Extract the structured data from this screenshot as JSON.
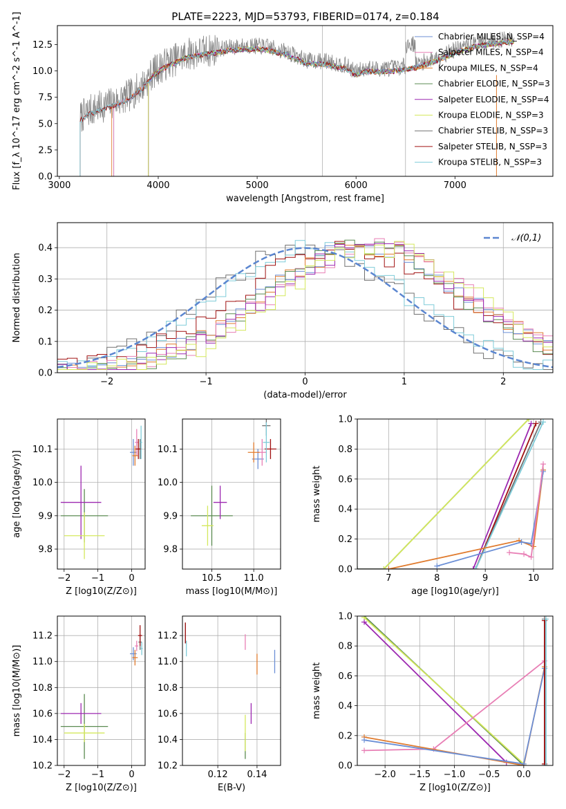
{
  "figure_title": "PLATE=2223, MJD=53793, FIBERID=0174, z=0.184",
  "colors": {
    "Chabrier MILES": "#6b8fd6",
    "Salpeter MILES": "#e87fb5",
    "Kroupa MILES": "#e07b2e",
    "Chabrier ELODIE": "#5a8a50",
    "Salpeter ELODIE": "#9c27b0",
    "Kroupa ELODIE": "#d4e85c",
    "Chabrier STELIB": "#707070",
    "Salpeter STELIB": "#a01010",
    "Kroupa STELIB": "#7ecbd8",
    "gaussian": "#5b86d0"
  },
  "chart_data": [
    {
      "id": "spectrum",
      "type": "line",
      "title": "PLATE=2223, MJD=53793, FIBERID=0174, z=0.184",
      "xlabel": "wavelength [Angstrom, rest frame]",
      "ylabel": "Flux [f_λ 10^-17 erg cm^-2 s^-1 A^-1]",
      "xlim": [
        2980,
        7990
      ],
      "ylim": [
        0,
        14.3
      ],
      "xticks": [
        3000,
        4000,
        5000,
        6000,
        7000
      ],
      "yticks": [
        0.0,
        2.5,
        5.0,
        7.5,
        10.0,
        12.5
      ],
      "vlines": [
        5660,
        6500
      ],
      "grid": false,
      "legend_position": "top-right",
      "spectrum_shape": {
        "x": [
          3200,
          3300,
          3450,
          3550,
          3700,
          3850,
          3950,
          4100,
          4300,
          4500,
          4700,
          4900,
          5100,
          5300,
          5500,
          5700,
          5900,
          6000,
          6100,
          6200,
          6400,
          6600,
          6800,
          7000,
          7200,
          7400,
          7600
        ],
        "y": [
          5.5,
          6.2,
          6.7,
          7.0,
          7.6,
          8.7,
          9.9,
          10.8,
          11.6,
          11.9,
          12.2,
          12.4,
          12.3,
          11.8,
          11.0,
          10.9,
          10.5,
          9.9,
          10.3,
          10.2,
          10.3,
          10.6,
          11.2,
          12.0,
          12.6,
          12.9,
          13.1
        ]
      },
      "series": [
        {
          "name": "Chabrier MILES, N_SSP=4",
          "key": "Chabrier MILES",
          "start": 3550
        },
        {
          "name": "Salpeter MILES, N_SSP=4",
          "key": "Salpeter MILES",
          "start": 3550
        },
        {
          "name": "Kroupa MILES, N_SSP=4",
          "key": "Kroupa MILES",
          "start": 3530
        },
        {
          "name": "Chabrier ELODIE, N_SSP=3",
          "key": "Chabrier ELODIE",
          "start": 3900
        },
        {
          "name": "Salpeter ELODIE, N_SSP=4",
          "key": "Salpeter ELODIE",
          "start": 3900
        },
        {
          "name": "Kroupa ELODIE, N_SSP=3",
          "key": "Kroupa ELODIE",
          "start": 3900
        },
        {
          "name": "Chabrier STELIB, N_SSP=3",
          "key": "Chabrier STELIB",
          "start": 3210
        },
        {
          "name": "Salpeter STELIB, N_SSP=3",
          "key": "Salpeter STELIB",
          "start": 3210
        },
        {
          "name": "Kroupa STELIB, N_SSP=3",
          "key": "Kroupa STELIB",
          "start": 3210
        }
      ]
    },
    {
      "id": "residuals",
      "type": "line",
      "xlabel": "(data-model)/error",
      "ylabel": "Normed distribution",
      "xlim": [
        -2.5,
        2.5
      ],
      "ylim": [
        0,
        0.48
      ],
      "xticks": [
        -2,
        -1,
        0,
        1,
        2
      ],
      "yticks": [
        0.0,
        0.1,
        0.2,
        0.3,
        0.4
      ],
      "grid": true,
      "legend_position": "top-right",
      "gaussian": {
        "name": "𝒩(0,1)",
        "mean": 0,
        "sigma": 1
      },
      "hist_shapes": [
        {
          "key": "Chabrier STELIB",
          "peak": 0.0,
          "width": 1.0
        },
        {
          "key": "Kroupa STELIB",
          "peak": 0.05,
          "width": 1.0
        },
        {
          "key": "Salpeter STELIB",
          "peak": 0.4,
          "width": 1.1
        },
        {
          "key": "Chabrier MILES",
          "peak": 0.6,
          "width": 1.05
        },
        {
          "key": "Kroupa MILES",
          "peak": 0.6,
          "width": 1.05
        },
        {
          "key": "Salpeter MILES",
          "peak": 0.7,
          "width": 1.05
        },
        {
          "key": "Chabrier ELODIE",
          "peak": 0.6,
          "width": 1.0
        },
        {
          "key": "Salpeter ELODIE",
          "peak": 0.65,
          "width": 1.0
        },
        {
          "key": "Kroupa ELODIE",
          "peak": 0.75,
          "width": 1.0
        }
      ]
    },
    {
      "id": "age_vs_Z",
      "type": "scatter",
      "xlabel": "Z [log10(Z/Z⊙)]",
      "ylabel": "age [log10(age/yr)]",
      "xlim": [
        -2.2,
        0.4
      ],
      "ylim": [
        9.74,
        10.19
      ],
      "xticks": [
        -2,
        -1,
        0
      ],
      "yticks": [
        9.8,
        9.9,
        10.0,
        10.1
      ],
      "grid": true,
      "points": [
        {
          "key": "Chabrier MILES",
          "x": 0.05,
          "y": 10.09,
          "xerr": 0.1,
          "yerr": 0.04
        },
        {
          "key": "Salpeter MILES",
          "x": 0.15,
          "y": 10.12,
          "xerr": 0.05,
          "yerr": 0.04
        },
        {
          "key": "Kroupa MILES",
          "x": 0.1,
          "y": 10.08,
          "xerr": 0.08,
          "yerr": 0.03
        },
        {
          "key": "Chabrier ELODIE",
          "x": -1.4,
          "y": 9.9,
          "xerr": 0.7,
          "yerr": 0.08
        },
        {
          "key": "Salpeter ELODIE",
          "x": -1.5,
          "y": 9.94,
          "xerr": 0.6,
          "yerr": 0.11
        },
        {
          "key": "Kroupa ELODIE",
          "x": -1.4,
          "y": 9.84,
          "xerr": 0.6,
          "yerr": 0.07
        },
        {
          "key": "Chabrier STELIB",
          "x": 0.25,
          "y": 10.1,
          "xerr": 0.05,
          "yerr": 0.03
        },
        {
          "key": "Salpeter STELIB",
          "x": 0.2,
          "y": 10.1,
          "xerr": 0.08,
          "yerr": 0.03
        },
        {
          "key": "Kroupa STELIB",
          "x": 0.28,
          "y": 10.12,
          "xerr": 0.03,
          "yerr": 0.05
        }
      ]
    },
    {
      "id": "age_vs_mass",
      "type": "scatter",
      "xlabel": "mass [log10(M/M⊙)]",
      "ylabel": "",
      "xlim": [
        10.15,
        11.32
      ],
      "ylim": [
        9.74,
        10.19
      ],
      "xticks": [
        10.5,
        11.0
      ],
      "yticks": [
        9.8,
        9.9,
        10.0,
        10.1
      ],
      "grid": true,
      "points": [
        {
          "key": "Chabrier MILES",
          "x": 11.05,
          "y": 10.07,
          "xerr": 0.07,
          "yerr": 0.03
        },
        {
          "key": "Salpeter MILES",
          "x": 11.1,
          "y": 10.09,
          "xerr": 0.05,
          "yerr": 0.04
        },
        {
          "key": "Kroupa MILES",
          "x": 11.0,
          "y": 10.09,
          "xerr": 0.07,
          "yerr": 0.03
        },
        {
          "key": "Chabrier ELODIE",
          "x": 10.5,
          "y": 9.9,
          "xerr": 0.25,
          "yerr": 0.09
        },
        {
          "key": "Salpeter ELODIE",
          "x": 10.6,
          "y": 9.94,
          "xerr": 0.08,
          "yerr": 0.05
        },
        {
          "key": "Kroupa ELODIE",
          "x": 10.45,
          "y": 9.87,
          "xerr": 0.07,
          "yerr": 0.06
        },
        {
          "key": "Chabrier STELIB",
          "x": 11.15,
          "y": 10.17,
          "xerr": 0.05,
          "yerr": 0.03
        },
        {
          "key": "Salpeter STELIB",
          "x": 11.2,
          "y": 10.1,
          "xerr": 0.07,
          "yerr": 0.03
        },
        {
          "key": "Kroupa STELIB",
          "x": 11.15,
          "y": 10.12,
          "xerr": 0.04,
          "yerr": 0.06
        }
      ]
    },
    {
      "id": "weight_vs_age",
      "type": "line",
      "xlabel": "age [log10(age/yr)]",
      "ylabel": "mass weight",
      "xlim": [
        6.35,
        10.4
      ],
      "ylim": [
        0,
        1.0
      ],
      "xticks": [
        7,
        8,
        9,
        10
      ],
      "yticks": [
        0.0,
        0.2,
        0.4,
        0.6,
        0.8,
        1.0
      ],
      "grid": true,
      "series": [
        {
          "key": "Chabrier ELODIE",
          "points": [
            [
              6.35,
              0.0
            ],
            [
              6.9,
              0.0
            ],
            [
              9.9,
              1.0
            ]
          ]
        },
        {
          "key": "Kroupa ELODIE",
          "points": [
            [
              6.9,
              0.0
            ],
            [
              9.9,
              1.0
            ]
          ]
        },
        {
          "key": "Salpeter ELODIE",
          "points": [
            [
              8.75,
              0.0
            ],
            [
              9.95,
              0.97
            ]
          ]
        },
        {
          "key": "Salpeter STELIB",
          "points": [
            [
              8.8,
              0.0
            ],
            [
              10.05,
              0.97
            ]
          ]
        },
        {
          "key": "Chabrier STELIB",
          "points": [
            [
              6.35,
              0.0
            ],
            [
              8.8,
              0.0
            ],
            [
              10.15,
              0.98
            ]
          ]
        },
        {
          "key": "Kroupa STELIB",
          "points": [
            [
              8.8,
              0.0
            ],
            [
              10.2,
              0.98
            ]
          ]
        },
        {
          "key": "Kroupa MILES",
          "points": [
            [
              7.0,
              0.0
            ],
            [
              9.7,
              0.19
            ],
            [
              10.0,
              0.15
            ],
            [
              10.2,
              0.66
            ]
          ]
        },
        {
          "key": "Chabrier MILES",
          "points": [
            [
              8.0,
              0.02
            ],
            [
              9.75,
              0.18
            ],
            [
              9.95,
              0.17
            ],
            [
              10.2,
              0.65
            ]
          ]
        },
        {
          "key": "Salpeter MILES",
          "points": [
            [
              9.5,
              0.11
            ],
            [
              9.8,
              0.1
            ],
            [
              9.95,
              0.08
            ],
            [
              10.2,
              0.7
            ]
          ]
        }
      ]
    },
    {
      "id": "mass_vs_Z",
      "type": "scatter",
      "xlabel": "Z [log10(Z/Z⊙)]",
      "ylabel": "mass [log10(M/M⊙)]",
      "xlim": [
        -2.2,
        0.4
      ],
      "ylim": [
        10.2,
        11.35
      ],
      "xticks": [
        -2,
        -1,
        0
      ],
      "yticks": [
        10.2,
        10.4,
        10.6,
        10.8,
        11.0,
        11.2
      ],
      "grid": true,
      "points": [
        {
          "key": "Chabrier MILES",
          "x": 0.05,
          "y": 11.06,
          "xerr": 0.1,
          "yerr": 0.05
        },
        {
          "key": "Salpeter MILES",
          "x": 0.15,
          "y": 11.12,
          "xerr": 0.05,
          "yerr": 0.04
        },
        {
          "key": "Kroupa MILES",
          "x": 0.1,
          "y": 11.03,
          "xerr": 0.08,
          "yerr": 0.06
        },
        {
          "key": "Chabrier ELODIE",
          "x": -1.4,
          "y": 10.5,
          "xerr": 0.7,
          "yerr": 0.25
        },
        {
          "key": "Salpeter ELODIE",
          "x": -1.5,
          "y": 10.6,
          "xerr": 0.6,
          "yerr": 0.08
        },
        {
          "key": "Kroupa ELODIE",
          "x": -1.4,
          "y": 10.45,
          "xerr": 0.6,
          "yerr": 0.07
        },
        {
          "key": "Chabrier STELIB",
          "x": 0.25,
          "y": 11.15,
          "xerr": 0.05,
          "yerr": 0.06
        },
        {
          "key": "Salpeter STELIB",
          "x": 0.25,
          "y": 11.2,
          "xerr": 0.06,
          "yerr": 0.08
        },
        {
          "key": "Kroupa STELIB",
          "x": 0.3,
          "y": 11.1,
          "xerr": 0.03,
          "yerr": 0.05
        }
      ]
    },
    {
      "id": "mass_vs_ebv",
      "type": "scatter",
      "xlabel": "E(B-V)",
      "ylabel": "",
      "xlim": [
        0.102,
        0.152
      ],
      "ylim": [
        10.2,
        11.35
      ],
      "xticks": [
        0.12,
        0.14
      ],
      "yticks": [
        10.2,
        10.4,
        10.6,
        10.8,
        11.0,
        11.2
      ],
      "grid": true,
      "points": [
        {
          "key": "Chabrier MILES",
          "x": 0.149,
          "y": 11.0,
          "xerr": 0,
          "yerr": 0.09
        },
        {
          "key": "Salpeter MILES",
          "x": 0.134,
          "y": 11.15,
          "xerr": 0,
          "yerr": 0.06
        },
        {
          "key": "Kroupa MILES",
          "x": 0.14,
          "y": 10.98,
          "xerr": 0,
          "yerr": 0.08
        },
        {
          "key": "Chabrier ELODIE",
          "x": 0.134,
          "y": 10.35,
          "xerr": 0,
          "yerr": 0.1
        },
        {
          "key": "Salpeter ELODIE",
          "x": 0.137,
          "y": 10.6,
          "xerr": 0,
          "yerr": 0.08
        },
        {
          "key": "Kroupa ELODIE",
          "x": 0.134,
          "y": 10.45,
          "xerr": 0,
          "yerr": 0.14
        },
        {
          "key": "Chabrier STELIB",
          "x": 0.1035,
          "y": 11.22,
          "xerr": 0,
          "yerr": 0.08
        },
        {
          "key": "Salpeter STELIB",
          "x": 0.1035,
          "y": 11.22,
          "xerr": 0,
          "yerr": 0.08
        },
        {
          "key": "Kroupa STELIB",
          "x": 0.104,
          "y": 11.1,
          "xerr": 0,
          "yerr": 0.06
        }
      ]
    },
    {
      "id": "weight_vs_Z",
      "type": "line",
      "xlabel": "Z [log10(Z/Z⊙)]",
      "ylabel": "mass weight",
      "xlim": [
        -2.4,
        0.42
      ],
      "ylim": [
        0,
        1.0
      ],
      "xticks": [
        -2.0,
        -1.5,
        -1.0,
        -0.5,
        0.0
      ],
      "yticks": [
        0.0,
        0.2,
        0.4,
        0.6,
        0.8,
        1.0
      ],
      "grid": true,
      "series": [
        {
          "key": "Chabrier ELODIE",
          "points": [
            [
              -2.3,
              1.0
            ],
            [
              0.0,
              0.0
            ]
          ]
        },
        {
          "key": "Kroupa ELODIE",
          "points": [
            [
              -2.3,
              0.99
            ],
            [
              0.0,
              0.01
            ]
          ]
        },
        {
          "key": "Salpeter ELODIE",
          "points": [
            [
              -2.3,
              0.96
            ],
            [
              -0.25,
              0.02
            ]
          ]
        },
        {
          "key": "Salpeter MILES",
          "points": [
            [
              -2.3,
              0.1
            ],
            [
              -1.3,
              0.11
            ],
            [
              0.3,
              0.7
            ]
          ]
        },
        {
          "key": "Kroupa MILES",
          "points": [
            [
              -2.3,
              0.19
            ],
            [
              0.0,
              0.0
            ],
            [
              0.3,
              0.66
            ]
          ]
        },
        {
          "key": "Chabrier MILES",
          "points": [
            [
              -2.3,
              0.17
            ],
            [
              0.0,
              0.01
            ],
            [
              0.3,
              0.65
            ]
          ]
        },
        {
          "key": "Chabrier STELIB",
          "points": [
            [
              0.3,
              0.0
            ],
            [
              0.3,
              0.98
            ]
          ]
        },
        {
          "key": "Salpeter STELIB",
          "points": [
            [
              0.3,
              0.01
            ],
            [
              0.3,
              0.97
            ]
          ]
        },
        {
          "key": "Kroupa STELIB",
          "points": [
            [
              0.32,
              0.0
            ],
            [
              0.32,
              0.98
            ]
          ]
        }
      ]
    }
  ]
}
